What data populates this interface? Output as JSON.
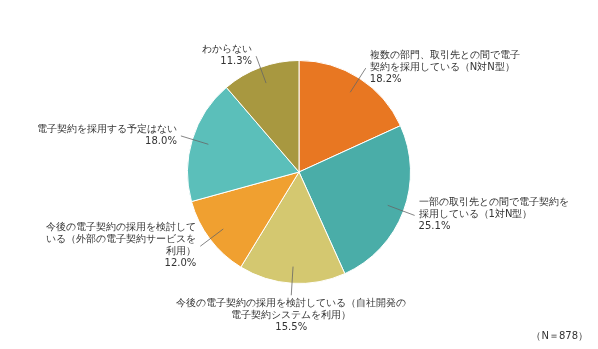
{
  "chart_data": {
    "type": "pie",
    "categories": [
      "複数の部門、取引先との間で電子契約を採用している（N対N型）",
      "一部の取引先との間で電子契約を採用している（1対N型）",
      "今後の電子契約の採用を検討している（自社開発の電子契約システムを利用）",
      "今後の電子契約の採用を検討している（外部の電子契約サービスを利用）",
      "電子契約を採用する予定はない",
      "わからない"
    ],
    "values": [
      18.2,
      25.1,
      15.5,
      12.0,
      18.0,
      11.3
    ],
    "value_labels": [
      "18.2%",
      "25.1%",
      "15.5%",
      "12.0%",
      "18.0%",
      "11.3%"
    ],
    "data_labels": true,
    "colors": [
      "#E87722",
      "#4AADA8",
      "#D4C870",
      "#F0A030",
      "#5BBFBA",
      "#A89840"
    ],
    "annotations": [
      "（N＝878）"
    ],
    "legend": false
  }
}
